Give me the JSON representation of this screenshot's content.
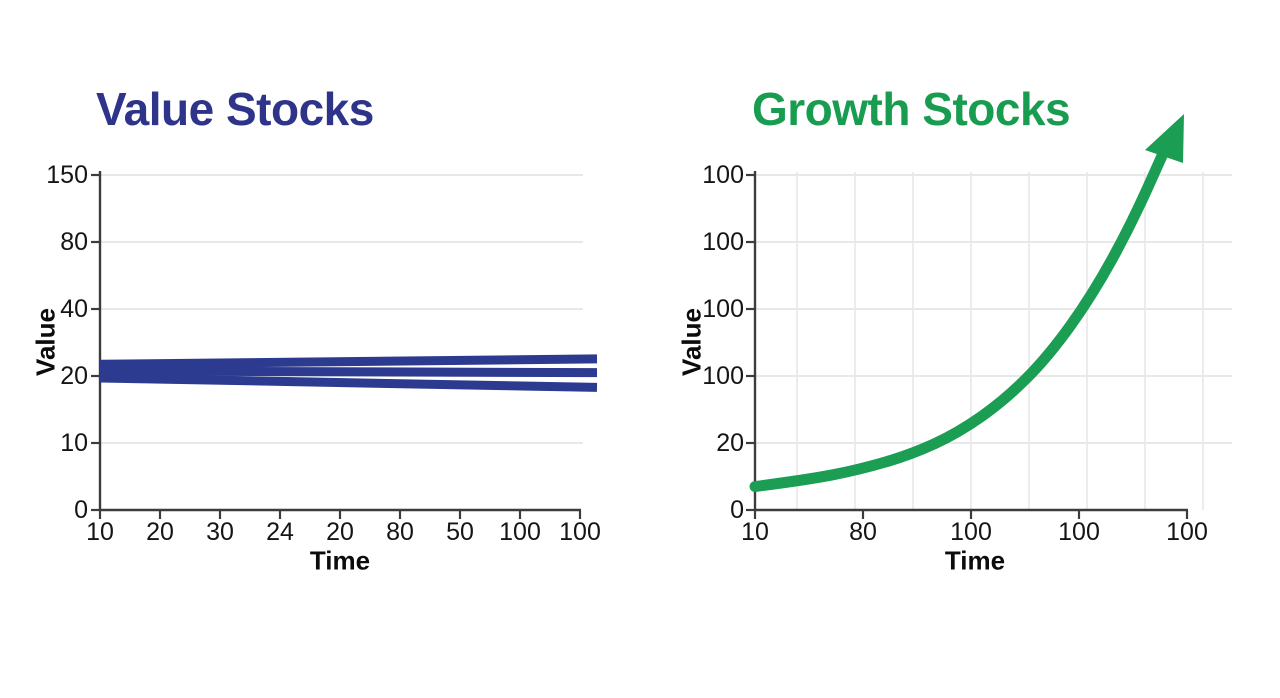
{
  "background_color": "#ffffff",
  "chart_data": [
    {
      "type": "line",
      "panel": "left",
      "title": "Value Stocks",
      "title_color": "#2e3489",
      "xlabel": "Time",
      "ylabel": "Value",
      "x_tick_labels": [
        "10",
        "20",
        "30",
        "24",
        "20",
        "80",
        "50",
        "100",
        "100"
      ],
      "y_tick_labels": [
        "150",
        "80",
        "40",
        "20",
        "10",
        "0"
      ],
      "line_color": "#2c3b8f",
      "grid": "horizontal",
      "trend": "flat - three nearly horizontal navy lines clustered around value 20",
      "series": [
        {
          "name": "top-line",
          "start": 23.5,
          "end": 25.1
        },
        {
          "name": "middle-line",
          "start": 21.5,
          "end": 21.0
        },
        {
          "name": "bottom-line",
          "start": 19.7,
          "end": 18.3
        }
      ]
    },
    {
      "type": "line",
      "panel": "right",
      "title": "Growth Stocks",
      "title_color": "#189c50",
      "xlabel": "Time",
      "ylabel": "Value",
      "x_tick_labels": [
        "10",
        "80",
        "100",
        "100",
        "100"
      ],
      "y_tick_labels": [
        "100",
        "100",
        "100",
        "100",
        "20",
        "0"
      ],
      "line_color": "#1b9e53",
      "grid": "full",
      "arrow": true,
      "trend": "exponential growth curve ending in an upward arrow above the plot",
      "series": [
        {
          "name": "growth-curve",
          "points": [
            [
              0,
              7
            ],
            [
              0.12,
              9
            ],
            [
              0.24,
              12
            ],
            [
              0.36,
              16.5
            ],
            [
              0.47,
              23
            ],
            [
              0.58,
              33
            ],
            [
              0.68,
              46
            ],
            [
              0.78,
              64
            ],
            [
              0.87,
              85
            ],
            [
              0.95,
              108
            ]
          ]
        }
      ]
    }
  ]
}
